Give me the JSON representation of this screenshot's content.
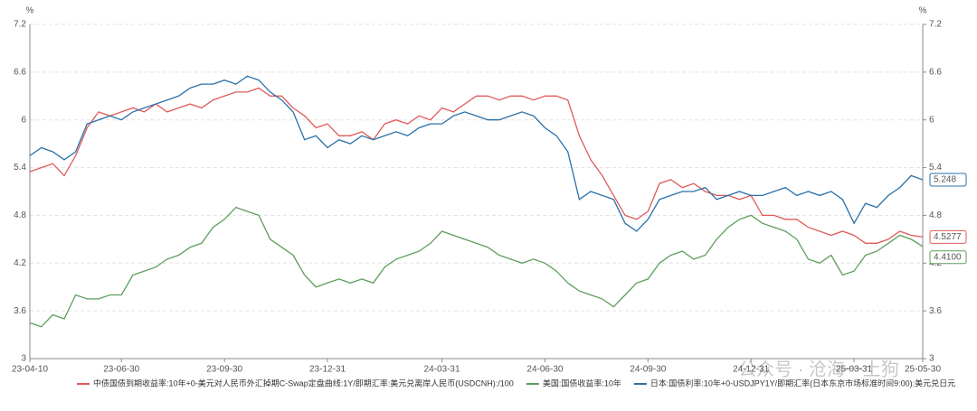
{
  "chart_data": {
    "type": "line",
    "y_unit": "%",
    "y2_unit": "%",
    "ylim": [
      3,
      7.2
    ],
    "yticks": [
      3,
      3.6,
      4.2,
      4.8,
      5.4,
      6,
      6.6,
      7.2
    ],
    "y2lim": [
      3,
      7.2
    ],
    "y2ticks": [
      3,
      3.6,
      4.2,
      4.8,
      5.4,
      6,
      6.6,
      7.2
    ],
    "grid": true,
    "watermark": "公众号 · 沧海一土狗",
    "categories": [
      "23-04-10",
      null,
      null,
      null,
      null,
      null,
      null,
      null,
      "23-06-30",
      null,
      null,
      null,
      null,
      null,
      null,
      null,
      null,
      "23-09-30",
      null,
      null,
      null,
      null,
      null,
      null,
      null,
      null,
      "23-12-31",
      null,
      null,
      null,
      null,
      null,
      null,
      null,
      null,
      null,
      "24-03-31",
      null,
      null,
      null,
      null,
      null,
      null,
      null,
      null,
      "24-06-30",
      null,
      null,
      null,
      null,
      null,
      null,
      null,
      null,
      "24-09-30",
      null,
      null,
      null,
      null,
      null,
      null,
      null,
      null,
      "24-12-31",
      null,
      null,
      null,
      null,
      null,
      null,
      null,
      null,
      "25-03-31",
      null,
      null,
      null,
      null,
      null,
      "25-05-30"
    ],
    "series": [
      {
        "name": "中债国债到期收益率:10年+0-美元对人民币外汇掉期C-Swap定盘曲线:1Y/即期汇率:美元兑离岸人民币(USDCNH):/100",
        "color": "#e05a5a",
        "last_label": "4.5277",
        "values": [
          5.35,
          5.4,
          5.45,
          5.3,
          5.55,
          5.9,
          6.1,
          6.05,
          6.1,
          6.15,
          6.1,
          6.2,
          6.1,
          6.15,
          6.2,
          6.15,
          6.25,
          6.3,
          6.35,
          6.35,
          6.4,
          6.3,
          6.3,
          6.15,
          6.05,
          5.9,
          5.95,
          5.8,
          5.8,
          5.85,
          5.75,
          5.95,
          6.0,
          5.95,
          6.05,
          6.0,
          6.15,
          6.1,
          6.2,
          6.3,
          6.3,
          6.25,
          6.3,
          6.3,
          6.25,
          6.3,
          6.3,
          6.25,
          5.8,
          5.5,
          5.3,
          5.05,
          4.8,
          4.75,
          4.85,
          5.2,
          5.25,
          5.15,
          5.2,
          5.1,
          5.05,
          5.05,
          5.0,
          5.05,
          4.8,
          4.8,
          4.75,
          4.75,
          4.65,
          4.6,
          4.55,
          4.6,
          4.55,
          4.45,
          4.45,
          4.5,
          4.6,
          4.55,
          4.5277
        ]
      },
      {
        "name": "美国:国债收益率:10年",
        "color": "#5c9e5c",
        "last_label": "4.4100",
        "values": [
          3.45,
          3.4,
          3.55,
          3.5,
          3.8,
          3.75,
          3.75,
          3.8,
          3.8,
          4.05,
          4.1,
          4.15,
          4.25,
          4.3,
          4.4,
          4.45,
          4.65,
          4.75,
          4.9,
          4.85,
          4.8,
          4.5,
          4.4,
          4.3,
          4.05,
          3.9,
          3.95,
          4.0,
          3.95,
          4.0,
          3.95,
          4.15,
          4.25,
          4.3,
          4.35,
          4.45,
          4.6,
          4.55,
          4.5,
          4.45,
          4.4,
          4.3,
          4.25,
          4.2,
          4.25,
          4.2,
          4.1,
          3.95,
          3.85,
          3.8,
          3.75,
          3.65,
          3.8,
          3.95,
          4.0,
          4.2,
          4.3,
          4.35,
          4.25,
          4.3,
          4.5,
          4.65,
          4.75,
          4.8,
          4.7,
          4.65,
          4.6,
          4.5,
          4.25,
          4.2,
          4.3,
          4.05,
          4.1,
          4.3,
          4.35,
          4.45,
          4.55,
          4.5,
          4.41
        ]
      },
      {
        "name": "日本:国债利率:10年+0-USDJPY1Y/即期汇率(日本东京市场标准时间9:00):美元兑日元",
        "color": "#2a70a8",
        "last_label": "5.248",
        "values": [
          5.55,
          5.65,
          5.6,
          5.5,
          5.6,
          5.95,
          6.0,
          6.05,
          6.0,
          6.1,
          6.15,
          6.2,
          6.25,
          6.3,
          6.4,
          6.45,
          6.45,
          6.5,
          6.45,
          6.55,
          6.5,
          6.35,
          6.25,
          6.1,
          5.75,
          5.8,
          5.65,
          5.75,
          5.7,
          5.8,
          5.75,
          5.8,
          5.85,
          5.8,
          5.9,
          5.95,
          5.95,
          6.05,
          6.1,
          6.05,
          6.0,
          6.0,
          6.05,
          6.1,
          6.05,
          5.9,
          5.8,
          5.6,
          5.0,
          5.1,
          5.05,
          5.0,
          4.7,
          4.6,
          4.75,
          5.0,
          5.05,
          5.1,
          5.1,
          5.15,
          5.0,
          5.05,
          5.1,
          5.05,
          5.05,
          5.1,
          5.15,
          5.05,
          5.1,
          5.05,
          5.1,
          5.0,
          4.7,
          4.95,
          4.9,
          5.05,
          5.15,
          5.3,
          5.248
        ]
      }
    ]
  }
}
